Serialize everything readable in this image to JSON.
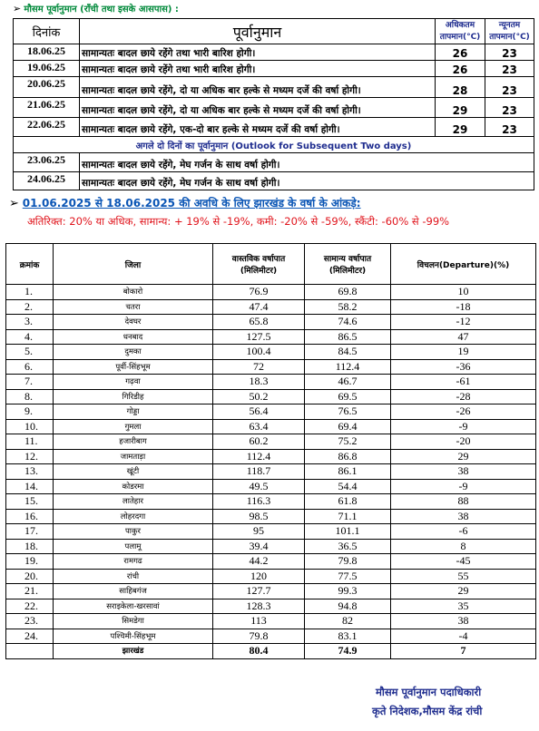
{
  "forecast": {
    "heading": "मौसम पूर्वानुमान (राँची तथा इसके आसपास)  :",
    "col_date": "दिनांक",
    "col_forecast": "पूर्वानुमान",
    "col_max_1": "अधिकतम",
    "col_max_2": "तापमान(°C)",
    "col_min_1": "न्यूनतम",
    "col_min_2": "तापमान(°C)",
    "rows": [
      {
        "date": "18.06.25",
        "text": "सामान्यतः बादल छाये रहेंगे तथा भारी बारिश होगी।",
        "max": "26",
        "min": "23"
      },
      {
        "date": "19.06.25",
        "text": "सामान्यतः बादल छाये रहेंगे तथा भारी बारिश होगी।",
        "max": "26",
        "min": "23"
      },
      {
        "date": "20.06.25",
        "text": "सामान्यतः बादल छाये रहेंगे, दो या अधिक बार हल्के से मध्यम दर्जे की वर्षा होगी।",
        "max": "28",
        "min": "23"
      },
      {
        "date": "21.06.25",
        "text": "सामान्यतः बादल छाये रहेंगे, दो या अधिक बार हल्के से मध्यम दर्जे की वर्षा होगी।",
        "max": "29",
        "min": "23"
      },
      {
        "date": "22.06.25",
        "text": "सामान्यतः बादल छाये रहेंगे, एक-दो बार हल्के से मध्यम दर्जे की वर्षा होगी।",
        "max": "29",
        "min": "23"
      }
    ],
    "outlook_label": "अगले दो दिनों का पूर्वानुमान (Outlook for Subsequent Two days)",
    "outlook_rows": [
      {
        "date": "23.06.25",
        "text": "सामान्यतः बादल छाये रहेंगे, मेघ गर्जन के साथ वर्षा होगी।"
      },
      {
        "date": "24.06.25",
        "text": "सामान्यतः बादल छाये रहेंगे, मेघ गर्जन के साथ वर्षा होगी।"
      }
    ]
  },
  "rain_heading": "01.06.2025 से 18.06.2025 की अवधि के लिए झारखंड के वर्षा के आंकड़े:",
  "legend": "अतिरिक्त: 20% या अधिक, सामान्य: + 19% से -19%, कमी: -20% से -59%, स्कैंटी: -60% से -99%",
  "rain_table": {
    "col_index": "क्रमांक",
    "col_district": "जिला",
    "col_actual_1": "वास्तविक वर्षापात",
    "col_actual_2": "(मिलिमीटर)",
    "col_normal_1": "सामान्य वर्षापात",
    "col_normal_2": "(मिलिमीटर)",
    "col_dep": "विचलन(Departure)(%)",
    "rows": [
      [
        "1.",
        "बोकारो",
        "76.9",
        "69.8",
        "10"
      ],
      [
        "2.",
        "चतरा",
        "47.4",
        "58.2",
        "-18"
      ],
      [
        "3.",
        "देवघर",
        "65.8",
        "74.6",
        "-12"
      ],
      [
        "4.",
        "धनबाद",
        "127.5",
        "86.5",
        "47"
      ],
      [
        "5.",
        "दुमका",
        "100.4",
        "84.5",
        "19"
      ],
      [
        "6.",
        "पूर्वी-सिंहभूम",
        "72",
        "112.4",
        "-36"
      ],
      [
        "7.",
        "गढ़वा",
        "18.3",
        "46.7",
        "-61"
      ],
      [
        "8.",
        "गिरिडीह",
        "50.2",
        "69.5",
        "-28"
      ],
      [
        "9.",
        "गोड्डा",
        "56.4",
        "76.5",
        "-26"
      ],
      [
        "10.",
        "गुमला",
        "63.4",
        "69.4",
        "-9"
      ],
      [
        "11.",
        "हजारीबाग",
        "60.2",
        "75.2",
        "-20"
      ],
      [
        "12.",
        "जामताड़ा",
        "112.4",
        "86.8",
        "29"
      ],
      [
        "13.",
        "खूंटी",
        "118.7",
        "86.1",
        "38"
      ],
      [
        "14.",
        "कोडरमा",
        "49.5",
        "54.4",
        "-9"
      ],
      [
        "15.",
        "लातेहार",
        "116.3",
        "61.8",
        "88"
      ],
      [
        "16.",
        "लोहरदगा",
        "98.5",
        "71.1",
        "38"
      ],
      [
        "17.",
        "पाकुर",
        "95",
        "101.1",
        "-6"
      ],
      [
        "18.",
        "पलामू",
        "39.4",
        "36.5",
        "8"
      ],
      [
        "19.",
        "रामगढ",
        "44.2",
        "79.8",
        "-45"
      ],
      [
        "20.",
        "रांची",
        "120",
        "77.5",
        "55"
      ],
      [
        "21.",
        "साहिबगंज",
        "127.7",
        "99.3",
        "29"
      ],
      [
        "22.",
        "सराइकेला-खरसावां",
        "128.3",
        "94.8",
        "35"
      ],
      [
        "23.",
        "सिमडेगा",
        "113",
        "82",
        "38"
      ],
      [
        "24.",
        "पश्चिमी-सिंहभूम",
        "79.8",
        "83.1",
        "-4"
      ]
    ],
    "total": [
      "",
      "झारखंड",
      "80.4",
      "74.9",
      "7"
    ]
  },
  "signature": {
    "line1": "मौसम  पूर्वानुमान पदाधिकारी",
    "line2": "कृते निदेशक,मौसम केंद्र रांची"
  }
}
